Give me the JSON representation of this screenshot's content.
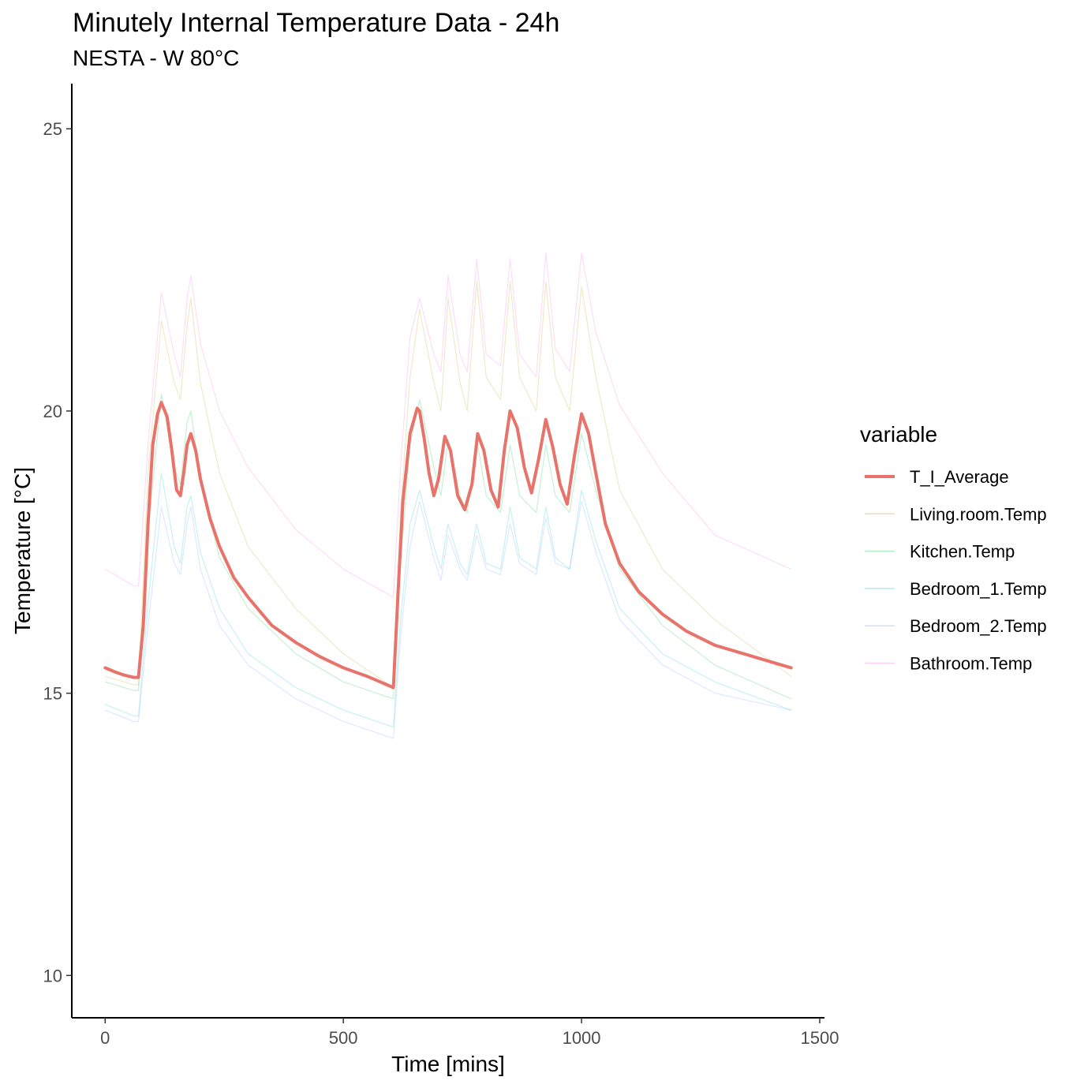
{
  "chart_data": {
    "type": "line",
    "title": "Minutely Internal Temperature Data - 24h",
    "subtitle": "NESTA - W 80°C",
    "xlabel": "Time [mins]",
    "ylabel": "Temperature [°C]",
    "xlim": [
      -70,
      1510
    ],
    "ylim": [
      9.25,
      25.8
    ],
    "xticks": [
      0,
      500,
      1000,
      1500
    ],
    "yticks": [
      10,
      15,
      20,
      25
    ],
    "legend_title": "variable",
    "legend_position": "right",
    "grid": false,
    "series": [
      {
        "name": "T_I_Average",
        "color": "#E8736B",
        "emphasis": true,
        "x": [
          0,
          20,
          40,
          60,
          70,
          80,
          90,
          100,
          110,
          118,
          130,
          140,
          150,
          158,
          165,
          172,
          180,
          190,
          200,
          220,
          240,
          270,
          300,
          350,
          400,
          450,
          500,
          550,
          605,
          615,
          625,
          640,
          655,
          660,
          670,
          680,
          690,
          700,
          713,
          725,
          740,
          755,
          770,
          782,
          795,
          810,
          825,
          838,
          850,
          865,
          880,
          895,
          910,
          925,
          940,
          955,
          970,
          985,
          1000,
          1015,
          1030,
          1050,
          1080,
          1120,
          1170,
          1220,
          1280,
          1340,
          1400,
          1440
        ],
        "y": [
          15.45,
          15.38,
          15.32,
          15.28,
          15.28,
          16.2,
          18.0,
          19.4,
          19.95,
          20.15,
          19.9,
          19.3,
          18.6,
          18.5,
          18.9,
          19.4,
          19.6,
          19.3,
          18.8,
          18.1,
          17.6,
          17.05,
          16.7,
          16.2,
          15.9,
          15.65,
          15.45,
          15.3,
          15.1,
          16.8,
          18.4,
          19.6,
          20.05,
          20.0,
          19.5,
          18.9,
          18.5,
          18.8,
          19.55,
          19.3,
          18.5,
          18.25,
          18.7,
          19.6,
          19.3,
          18.6,
          18.3,
          19.3,
          20.0,
          19.7,
          19.0,
          18.55,
          19.15,
          19.85,
          19.35,
          18.7,
          18.35,
          19.2,
          19.95,
          19.6,
          18.9,
          18.0,
          17.3,
          16.8,
          16.4,
          16.1,
          15.85,
          15.7,
          15.55,
          15.45
        ]
      },
      {
        "name": "Living.room.Temp",
        "color": "#B79F00",
        "x": [
          0,
          60,
          70,
          90,
          118,
          145,
          158,
          172,
          180,
          200,
          240,
          300,
          400,
          500,
          605,
          620,
          640,
          660,
          690,
          705,
          720,
          745,
          760,
          780,
          800,
          830,
          850,
          870,
          905,
          925,
          945,
          975,
          1000,
          1030,
          1080,
          1170,
          1280,
          1440
        ],
        "y": [
          15.3,
          15.15,
          15.15,
          18.9,
          21.6,
          20.5,
          20.2,
          21.5,
          22.0,
          20.5,
          18.9,
          17.6,
          16.5,
          15.7,
          15.1,
          18.2,
          20.6,
          21.8,
          20.5,
          20.0,
          22.0,
          20.5,
          20.0,
          22.3,
          20.6,
          20.2,
          22.3,
          20.6,
          20.0,
          22.3,
          20.6,
          20.0,
          22.2,
          20.6,
          18.6,
          17.2,
          16.3,
          15.3
        ]
      },
      {
        "name": "Kitchen.Temp",
        "color": "#00BA38",
        "x": [
          0,
          60,
          70,
          90,
          118,
          145,
          158,
          172,
          180,
          200,
          240,
          300,
          400,
          500,
          605,
          620,
          640,
          660,
          690,
          705,
          720,
          745,
          760,
          780,
          800,
          830,
          850,
          870,
          905,
          925,
          945,
          975,
          1000,
          1030,
          1080,
          1170,
          1280,
          1440
        ],
        "y": [
          15.2,
          15.05,
          15.05,
          17.8,
          20.3,
          19.0,
          18.7,
          19.8,
          20.0,
          18.8,
          17.4,
          16.5,
          15.7,
          15.2,
          14.9,
          17.3,
          19.4,
          20.2,
          19.0,
          18.5,
          19.5,
          18.5,
          18.2,
          19.5,
          18.5,
          18.2,
          19.4,
          18.5,
          18.2,
          19.4,
          18.5,
          18.2,
          19.6,
          18.6,
          17.2,
          16.2,
          15.5,
          14.9
        ]
      },
      {
        "name": "Bedroom_1.Temp",
        "color": "#00BFC4",
        "x": [
          0,
          60,
          70,
          90,
          118,
          145,
          158,
          172,
          180,
          200,
          240,
          300,
          400,
          500,
          605,
          620,
          640,
          660,
          690,
          705,
          720,
          745,
          760,
          780,
          800,
          830,
          850,
          870,
          905,
          925,
          945,
          975,
          1000,
          1030,
          1080,
          1170,
          1280,
          1440
        ],
        "y": [
          14.8,
          14.6,
          14.6,
          16.6,
          18.9,
          17.6,
          17.3,
          18.3,
          18.5,
          17.5,
          16.5,
          15.7,
          15.1,
          14.7,
          14.4,
          16.3,
          18.0,
          18.6,
          17.6,
          17.2,
          18.0,
          17.3,
          17.1,
          18.0,
          17.3,
          17.2,
          18.3,
          17.4,
          17.2,
          18.3,
          17.4,
          17.2,
          18.6,
          17.7,
          16.5,
          15.7,
          15.2,
          14.7
        ]
      },
      {
        "name": "Bedroom_2.Temp",
        "color": "#619CFF",
        "x": [
          0,
          60,
          70,
          90,
          118,
          145,
          158,
          172,
          180,
          200,
          240,
          300,
          400,
          500,
          605,
          620,
          640,
          660,
          690,
          705,
          720,
          745,
          760,
          780,
          800,
          830,
          850,
          870,
          905,
          925,
          945,
          975,
          1000,
          1030,
          1080,
          1170,
          1280,
          1440
        ],
        "y": [
          14.7,
          14.5,
          14.5,
          16.2,
          18.3,
          17.3,
          17.1,
          18.0,
          18.3,
          17.2,
          16.2,
          15.5,
          14.9,
          14.5,
          14.2,
          16.0,
          17.6,
          18.4,
          17.4,
          17.0,
          17.8,
          17.2,
          17.0,
          17.8,
          17.2,
          17.1,
          18.0,
          17.3,
          17.1,
          18.1,
          17.3,
          17.2,
          18.4,
          17.5,
          16.3,
          15.5,
          15.0,
          14.7
        ]
      },
      {
        "name": "Bathroom.Temp",
        "color": "#F564E3",
        "x": [
          0,
          60,
          70,
          90,
          118,
          145,
          158,
          172,
          180,
          200,
          240,
          300,
          400,
          500,
          605,
          620,
          640,
          660,
          690,
          705,
          720,
          745,
          760,
          780,
          800,
          830,
          850,
          870,
          905,
          925,
          945,
          975,
          1000,
          1030,
          1080,
          1170,
          1280,
          1440
        ],
        "y": [
          17.2,
          16.9,
          16.9,
          19.4,
          22.1,
          21.0,
          20.6,
          22.0,
          22.4,
          21.2,
          20.0,
          19.0,
          17.9,
          17.2,
          16.7,
          19.0,
          21.3,
          22.0,
          21.0,
          20.7,
          22.4,
          21.0,
          20.7,
          22.7,
          21.0,
          20.8,
          22.7,
          21.0,
          20.6,
          22.8,
          21.1,
          20.7,
          22.8,
          21.4,
          20.1,
          18.9,
          17.8,
          17.2
        ]
      }
    ]
  }
}
